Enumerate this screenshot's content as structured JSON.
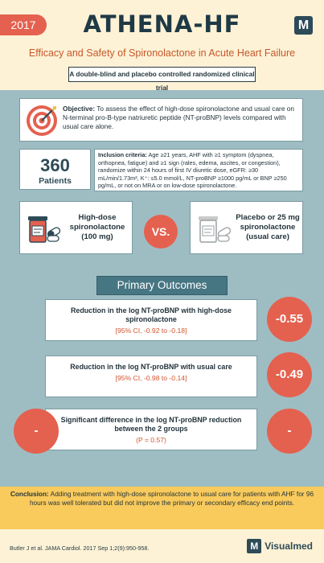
{
  "header": {
    "year": "2017",
    "title": "ATHENA-HF",
    "logo_letter": "M",
    "subtitle": "Efficacy and Safety of Spironolactone in Acute Heart Failure",
    "design": "A double-blind and placebo controlled randomized clinical trial"
  },
  "objective": {
    "label": "Objective:",
    "text": " To assess the effect of high-dose spironolactone and usual care on N-terminal pro-B-type natriuretic peptide (NT-proBNP) levels compared with usual care alone."
  },
  "patients": {
    "count": "360",
    "label": "Patients"
  },
  "inclusion": {
    "label": "Inclusion criteria:",
    "text": " Age ≥21 years, AHF with ≥1 symptom (dyspnea, orthopnea, fatigue) and ≥1 sign (rales, edema, ascites, or congestion), randomize within 24 hours of first IV diuretic dose, eGFR: ≥30 mL/min/1.73m², K⁺: ≤5.0 mmol/L, NT-proBNP ≥1000 pg/mL or BNP ≥250 pg/mL, or not on MRA or on low-dose spironolactone."
  },
  "arms": {
    "left": "High-dose spironolactone (100 mg)",
    "vs": "VS.",
    "right": "Placebo or 25 mg spironolactone (usual care)"
  },
  "outcomes": {
    "title": "Primary Outcomes",
    "items": [
      {
        "text": "Reduction  in the log NT-proBNP with high-dose spironolactone",
        "ci": "[95% CI, -0.92 to -0.18]",
        "value": "-0.55"
      },
      {
        "text": "Reduction  in the log NT-proBNP with usual care",
        "ci": "[95% CI, -0.98 to -0.14]",
        "value": "-0.49"
      },
      {
        "text": "Significant difference in the log NT-proBNP reduction between the 2 groups",
        "ci": "(P = 0.57)",
        "left_value": "-",
        "right_value": "-"
      }
    ]
  },
  "conclusion": {
    "label": "Conclusion:",
    "text": " Adding treatment with high-dose spironolactone to usual care for patients with AHF for 96 hours was well tolerated but did not improve the primary or secondary efficacy end points."
  },
  "footer": {
    "citation": "Butler J et al. JAMA Cardiol. 2017 Sep 1;2(9):950-958.",
    "brand_letter": "M",
    "brand_name": "Visualmed"
  },
  "colors": {
    "accent": "#e4614f",
    "teal": "#9ebdc3",
    "dark": "#2d4b57",
    "yellow": "#f9ca5c",
    "cream": "#fdf2d6"
  },
  "icons": [
    "target-icon",
    "medicine-bottle-icon",
    "placebo-bottle-icon"
  ]
}
